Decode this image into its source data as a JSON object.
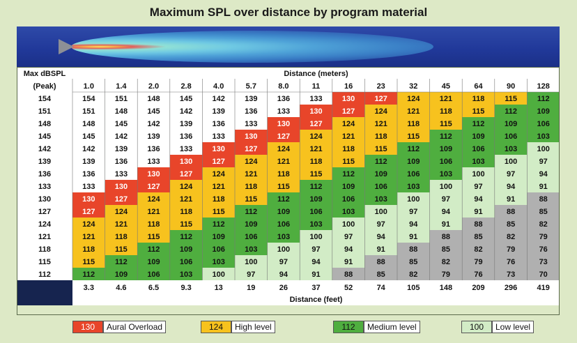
{
  "title": "Maximum SPL over distance by program material",
  "ylabel_line1": "Max dBSPL",
  "ylabel_line2": "(Peak)",
  "xlabel_top": "Distance (meters)",
  "xlabel_bottom": "Distance (feet)",
  "colors": {
    "aural_overload": "#e8452a",
    "high_level": "#f7c21e",
    "medium_level": "#4fae3f",
    "low_level": "#d2ecc6",
    "below": "#b0b0b0",
    "row_label_bg": "#ffffff",
    "navy": "#16244f"
  },
  "legend": [
    {
      "value": "130",
      "label": "Aural Overload",
      "key": "aural_overload"
    },
    {
      "value": "124",
      "label": "High level",
      "key": "high_level"
    },
    {
      "value": "112",
      "label": "Medium level",
      "key": "medium_level"
    },
    {
      "value": "100",
      "label": "Low level",
      "key": "low_level"
    }
  ],
  "chart_data": {
    "type": "table",
    "title": "Maximum SPL over distance by program material",
    "row_header": "Max dBSPL (Peak)",
    "max_dbspl": [
      154,
      151,
      148,
      145,
      142,
      139,
      136,
      133,
      130,
      127,
      124,
      121,
      118,
      115,
      112
    ],
    "distance_meters": [
      "1.0",
      "1.4",
      "2.0",
      "2.8",
      "4.0",
      "5.7",
      "8.0",
      "11",
      "16",
      "23",
      "32",
      "45",
      "64",
      "90",
      "128"
    ],
    "distance_feet": [
      "3.3",
      "4.6",
      "6.5",
      "9.3",
      "13",
      "19",
      "26",
      "37",
      "52",
      "74",
      "105",
      "148",
      "209",
      "296",
      "419"
    ],
    "levels": {
      "aural_overload": "127-130",
      "high_level": "115-124",
      "medium_level": "103-112",
      "low_level": "91-100",
      "below": "70-88"
    },
    "values": [
      [
        154,
        151,
        148,
        145,
        142,
        139,
        136,
        133,
        130,
        127,
        124,
        121,
        118,
        115,
        112
      ],
      [
        151,
        148,
        145,
        142,
        139,
        136,
        133,
        130,
        127,
        124,
        121,
        118,
        115,
        112,
        109
      ],
      [
        148,
        145,
        142,
        139,
        136,
        133,
        130,
        127,
        124,
        121,
        118,
        115,
        112,
        109,
        106
      ],
      [
        145,
        142,
        139,
        136,
        133,
        130,
        127,
        124,
        121,
        118,
        115,
        112,
        109,
        106,
        103
      ],
      [
        142,
        139,
        136,
        133,
        130,
        127,
        124,
        121,
        118,
        115,
        112,
        109,
        106,
        103,
        100
      ],
      [
        139,
        136,
        133,
        130,
        127,
        124,
        121,
        118,
        115,
        112,
        109,
        106,
        103,
        100,
        97
      ],
      [
        136,
        133,
        130,
        127,
        124,
        121,
        118,
        115,
        112,
        109,
        106,
        103,
        100,
        97,
        94
      ],
      [
        133,
        130,
        127,
        124,
        121,
        118,
        115,
        112,
        109,
        106,
        103,
        100,
        97,
        94,
        91
      ],
      [
        130,
        127,
        124,
        121,
        118,
        115,
        112,
        109,
        106,
        103,
        100,
        97,
        94,
        91,
        88
      ],
      [
        127,
        124,
        121,
        118,
        115,
        112,
        109,
        106,
        103,
        100,
        97,
        94,
        91,
        88,
        85
      ],
      [
        124,
        121,
        118,
        115,
        112,
        109,
        106,
        103,
        100,
        97,
        94,
        91,
        88,
        85,
        82
      ],
      [
        121,
        118,
        115,
        112,
        109,
        106,
        103,
        100,
        97,
        94,
        91,
        88,
        85,
        82,
        79
      ],
      [
        118,
        115,
        112,
        109,
        106,
        103,
        100,
        97,
        94,
        91,
        88,
        85,
        82,
        79,
        76
      ],
      [
        115,
        112,
        109,
        106,
        103,
        100,
        97,
        94,
        91,
        88,
        85,
        82,
        79,
        76,
        73
      ],
      [
        112,
        109,
        106,
        103,
        100,
        97,
        94,
        91,
        88,
        85,
        82,
        79,
        76,
        73,
        70
      ]
    ]
  }
}
